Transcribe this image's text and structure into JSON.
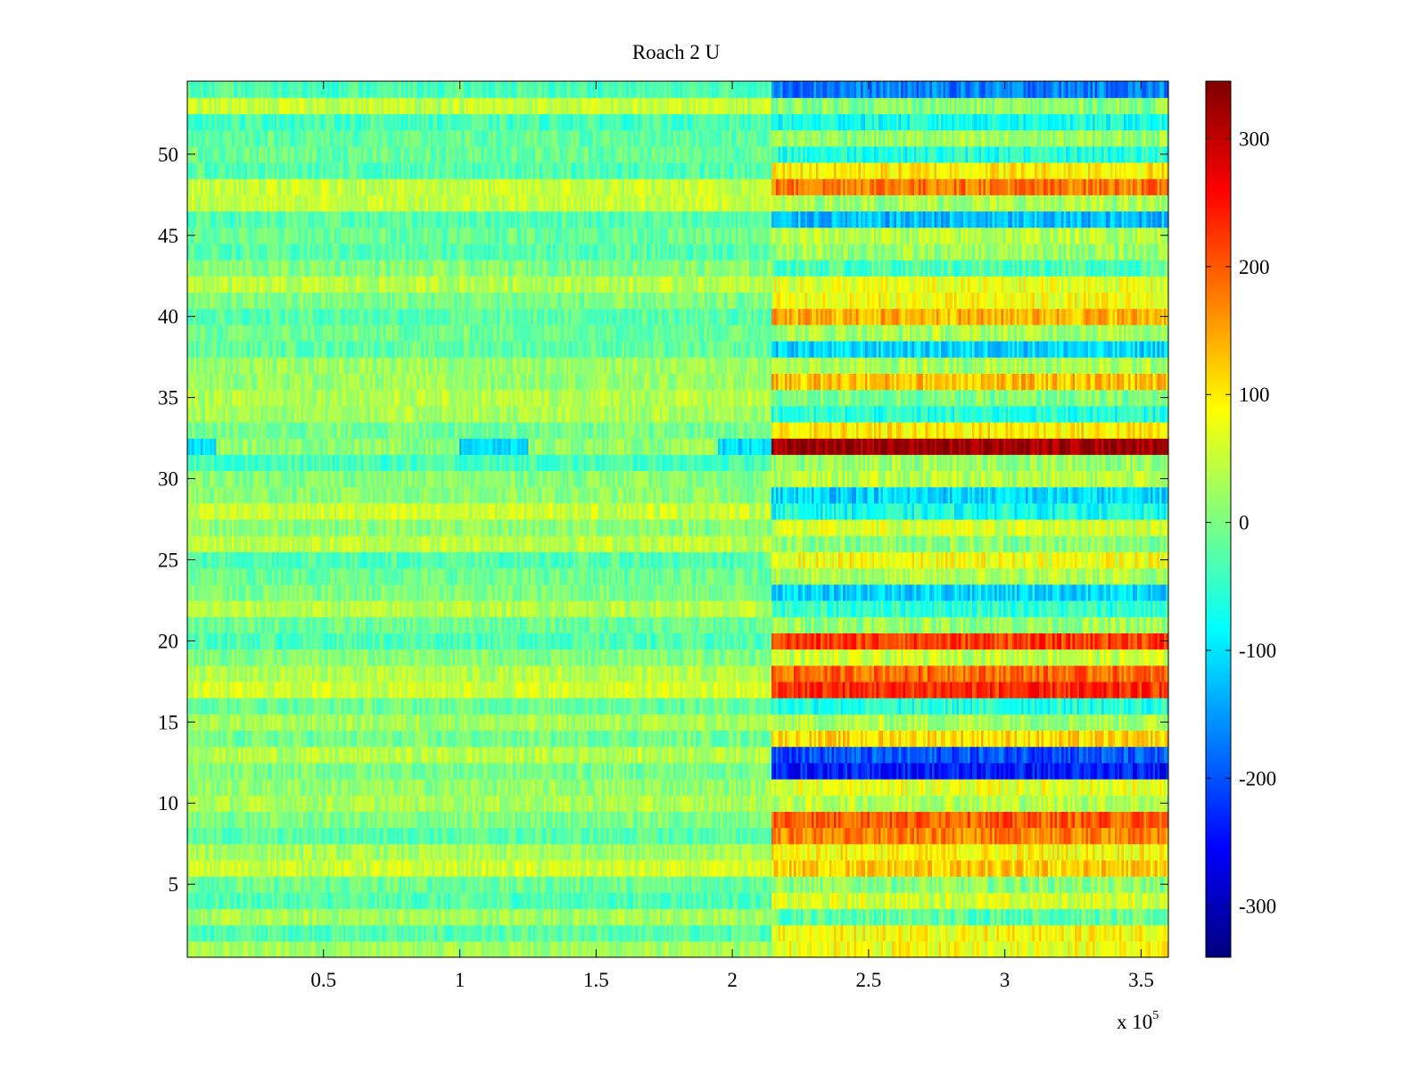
{
  "chart_data": {
    "type": "heatmap",
    "title": "Roach 2 U",
    "xlabel": "",
    "ylabel": "",
    "x_multiplier_label": {
      "base": "x 10",
      "exponent": "5"
    },
    "xlim": [
      0,
      3.6
    ],
    "ylim": [
      0.5,
      54.5
    ],
    "xticks": [
      "0.5",
      "1",
      "1.5",
      "2",
      "2.5",
      "3",
      "3.5"
    ],
    "xtick_values": [
      0.5,
      1,
      1.5,
      2,
      2.5,
      3,
      3.5
    ],
    "yticks": [
      "5",
      "10",
      "15",
      "20",
      "25",
      "30",
      "35",
      "40",
      "45",
      "50"
    ],
    "ytick_values": [
      5,
      10,
      15,
      20,
      25,
      30,
      35,
      40,
      45,
      50
    ],
    "rows": 54,
    "colormap": "jet",
    "clim": [
      -340,
      345
    ],
    "colorbar": {
      "ticks": [
        "300",
        "200",
        "100",
        "0",
        "-100",
        "-200",
        "-300"
      ],
      "tick_values": [
        300,
        200,
        100,
        0,
        -100,
        -200,
        -300
      ]
    },
    "regime_change_x": 2.14,
    "pre_change_level_range": [
      -40,
      60
    ],
    "post_change_row_levels": {
      "1": 80,
      "2": 90,
      "3": -20,
      "4": 60,
      "5": 10,
      "6": 120,
      "7": 90,
      "8": 170,
      "9": 200,
      "10": 40,
      "11": 70,
      "12": -240,
      "13": -200,
      "14": 110,
      "15": 30,
      "16": -60,
      "17": 230,
      "18": 190,
      "19": 50,
      "20": 220,
      "21": 20,
      "22": -50,
      "23": -110,
      "24": 30,
      "25": 80,
      "26": 10,
      "27": 60,
      "28": -70,
      "29": -110,
      "30": 40,
      "31": 20,
      "32": 330,
      "33": 100,
      "34": -60,
      "35": 0,
      "36": 130,
      "37": 30,
      "38": -110,
      "39": 30,
      "40": 140,
      "41": 80,
      "42": 70,
      "43": -30,
      "44": 20,
      "45": 40,
      "46": -130,
      "47": 30,
      "48": 180,
      "49": 100,
      "50": -60,
      "51": 20,
      "52": -70,
      "53": 10,
      "54": -170
    },
    "row_32_pre_change_level": -110
  }
}
